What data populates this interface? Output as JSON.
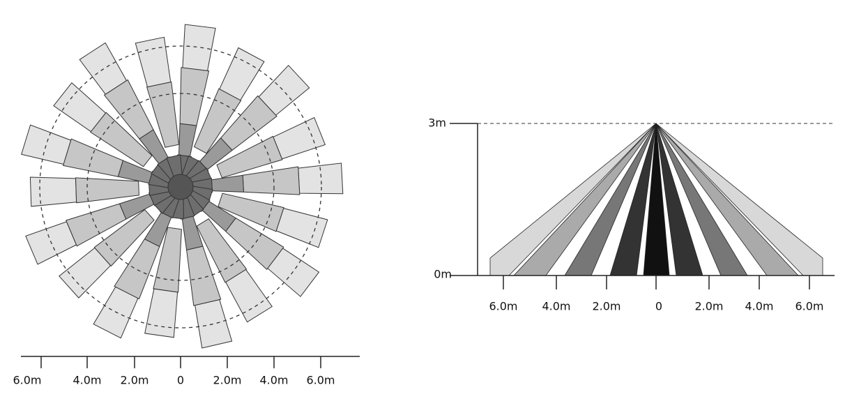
{
  "top_view": {
    "axis_labels": [
      "6.0m",
      "4.0m",
      "2.0m",
      "0",
      "2.0m",
      "4.0m",
      "6.0m"
    ]
  },
  "side_view": {
    "height_labels": [
      "3m",
      "0m"
    ],
    "axis_labels": [
      "6.0m",
      "4.0m",
      "2.0m",
      "0",
      "2.0m",
      "4.0m",
      "6.0m"
    ]
  }
}
